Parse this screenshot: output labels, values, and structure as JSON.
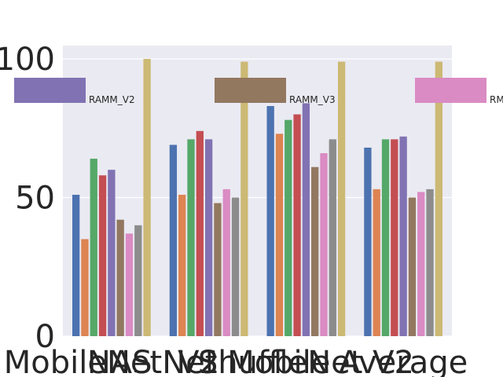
{
  "chart_data": {
    "type": "bar",
    "categories": [
      "MobileNet_V2",
      "NAS Net Mobile",
      "ShuffleNet V2",
      "Average"
    ],
    "series": [
      {
        "values": [
          51,
          69,
          83,
          68
        ],
        "color": "#4c72b0"
      },
      {
        "values": [
          35,
          51,
          73,
          53
        ],
        "color": "#dd8452"
      },
      {
        "values": [
          64,
          71,
          78,
          71
        ],
        "color": "#55a868"
      },
      {
        "values": [
          58,
          74,
          80,
          71
        ],
        "color": "#c44e52"
      },
      {
        "name": "RAMM_V2",
        "values": [
          60,
          71,
          84,
          72
        ],
        "color": "#8172b3"
      },
      {
        "name": "RAMM_V3",
        "values": [
          42,
          48,
          61,
          50
        ],
        "color": "#937860"
      },
      {
        "name": "RM",
        "values": [
          37,
          53,
          66,
          52
        ],
        "color": "#da8bc3"
      },
      {
        "values": [
          40,
          50,
          71,
          53
        ],
        "color": "#8c8c8c"
      },
      {
        "values": [
          100,
          99,
          99,
          99
        ],
        "color": "#ccb974"
      }
    ],
    "ylim": [
      0,
      100
    ],
    "yticks": [
      0,
      50,
      100
    ],
    "grid": true,
    "legend_placement": "top",
    "background": "#eaeaf2"
  }
}
